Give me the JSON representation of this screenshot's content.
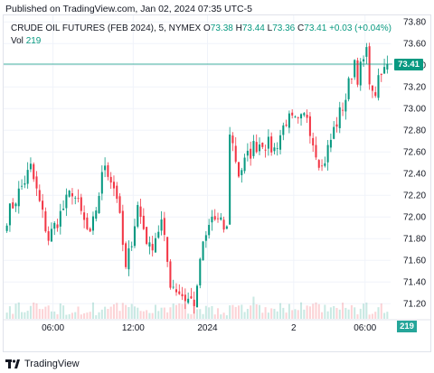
{
  "published": "Published on TradingView.com, Jan 02, 2024 07:35 UTC-5",
  "legend": {
    "title": "CRUDE OIL FUTURES (FEB 2024), 5, NYMEX",
    "o_label": "O",
    "o_value": "73.38",
    "h_label": "H",
    "h_value": "73.44",
    "l_label": "L",
    "l_value": "73.36",
    "c_label": "C",
    "c_value": "73.41",
    "change": "+0.03 (+0.04%)",
    "vol_label": "Vol",
    "vol_value": "219"
  },
  "badges": {
    "price": "73.41",
    "volume": "219"
  },
  "footer": {
    "brand": "TradingView",
    "logo_icon": "tradingview-logo-icon"
  },
  "colors": {
    "up": "#089981",
    "down": "#f23645",
    "grid": "#f0f3fa",
    "axis_text": "#131722"
  },
  "chart_data": {
    "type": "candlestick",
    "title": "CRUDE OIL FUTURES (FEB 2024), 5, NYMEX",
    "y_ticks": [
      "73.80",
      "73.60",
      "73.40",
      "73.20",
      "73.00",
      "72.80",
      "72.60",
      "72.40",
      "72.20",
      "72.00",
      "71.80",
      "71.60",
      "71.40",
      "71.20"
    ],
    "ylim": [
      71.06,
      73.86
    ],
    "x_ticks": [
      "06:00",
      "12:00",
      "2024",
      "2",
      "06:00"
    ],
    "x_tick_index": [
      15.5,
      42.5,
      67.5,
      96.5,
      120.5
    ],
    "n_candles": 129,
    "last_price": 73.41,
    "close_path": [
      [
        0,
        72.0
      ],
      [
        8,
        72.45
      ],
      [
        14,
        71.8
      ],
      [
        22,
        72.25
      ],
      [
        28,
        71.8
      ],
      [
        33,
        72.5
      ],
      [
        37,
        72.2
      ],
      [
        40,
        71.5
      ],
      [
        44,
        72.1
      ],
      [
        48,
        71.7
      ],
      [
        52,
        71.95
      ],
      [
        55,
        71.4
      ],
      [
        60,
        71.25
      ],
      [
        63,
        71.22
      ],
      [
        64,
        71.3
      ],
      [
        65,
        71.62
      ],
      [
        69,
        72.0
      ],
      [
        73,
        71.9
      ],
      [
        74,
        71.88
      ],
      [
        75,
        72.8
      ],
      [
        78,
        72.4
      ],
      [
        83,
        72.65
      ],
      [
        86,
        72.7
      ],
      [
        90,
        72.62
      ],
      [
        94,
        72.9
      ],
      [
        98,
        72.85
      ],
      [
        101,
        72.95
      ],
      [
        103,
        72.7
      ],
      [
        106,
        72.45
      ],
      [
        110,
        72.8
      ],
      [
        114,
        73.1
      ],
      [
        117,
        73.45
      ],
      [
        118,
        73.3
      ],
      [
        121,
        73.5
      ],
      [
        123,
        73.1
      ],
      [
        126,
        73.3
      ],
      [
        128,
        73.41
      ]
    ],
    "volume_max": 219
  }
}
